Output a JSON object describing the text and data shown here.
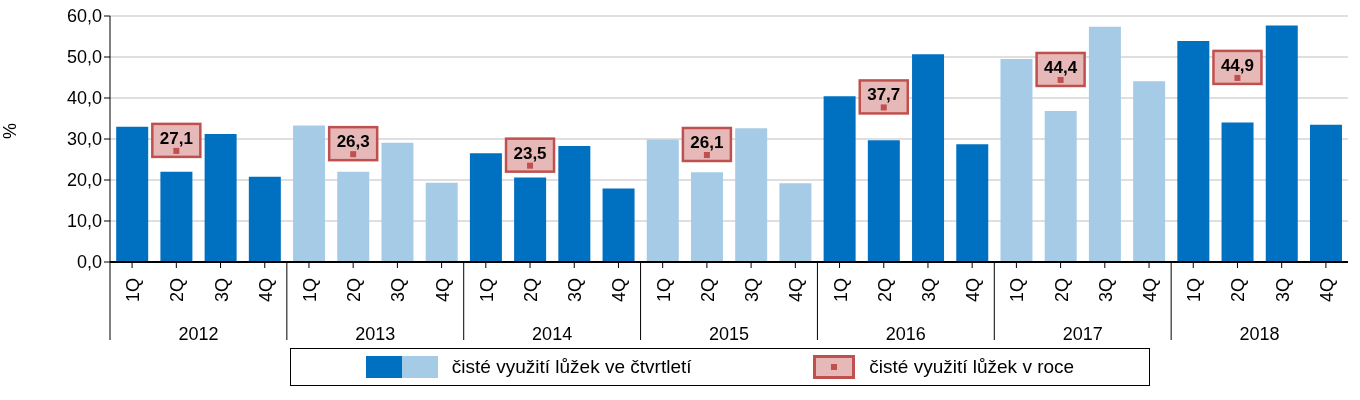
{
  "chart_data": {
    "type": "bar",
    "ylabel": "%",
    "categories": [
      "1Q",
      "2Q",
      "3Q",
      "4Q",
      "1Q",
      "2Q",
      "3Q",
      "4Q",
      "1Q",
      "2Q",
      "3Q",
      "4Q",
      "1Q",
      "2Q",
      "3Q",
      "4Q",
      "1Q",
      "2Q",
      "3Q",
      "4Q",
      "1Q",
      "2Q",
      "3Q",
      "4Q",
      "1Q",
      "2Q",
      "3Q",
      "4Q"
    ],
    "series": [
      {
        "name": "čisté využití lůžek ve čtvrtletí",
        "colors": [
          "#0070c0",
          "#0070c0",
          "#0070c0",
          "#0070c0",
          "#a6cbe7",
          "#a6cbe7",
          "#a6cbe7",
          "#a6cbe7",
          "#0070c0",
          "#0070c0",
          "#0070c0",
          "#0070c0",
          "#a6cbe7",
          "#a6cbe7",
          "#a6cbe7",
          "#a6cbe7",
          "#0070c0",
          "#0070c0",
          "#0070c0",
          "#0070c0",
          "#a6cbe7",
          "#a6cbe7",
          "#a6cbe7",
          "#a6cbe7",
          "#0070c0",
          "#0070c0",
          "#0070c0",
          "#0070c0"
        ],
        "values": [
          33.0,
          22.0,
          31.2,
          20.8,
          33.3,
          22.0,
          29.1,
          19.3,
          26.5,
          20.6,
          28.3,
          17.9,
          29.9,
          21.9,
          32.6,
          19.2,
          40.4,
          29.7,
          50.7,
          28.7,
          49.5,
          36.8,
          57.4,
          44.1,
          53.9,
          34.0,
          57.7,
          33.5
        ]
      },
      {
        "name": "čisté využití lůžek v roce",
        "type": "scatter",
        "marker": "square",
        "color": "#c0504d",
        "values": [
          null,
          27.1,
          null,
          null,
          null,
          26.3,
          null,
          null,
          null,
          23.5,
          null,
          null,
          null,
          26.1,
          null,
          null,
          null,
          37.7,
          null,
          null,
          null,
          44.4,
          null,
          null,
          null,
          44.9,
          null,
          null
        ],
        "value_labels": [
          null,
          "27,1",
          null,
          null,
          null,
          "26,3",
          null,
          null,
          null,
          "23,5",
          null,
          null,
          null,
          "26,1",
          null,
          null,
          null,
          "37,7",
          null,
          null,
          null,
          "44,4",
          null,
          null,
          null,
          "44,9",
          null,
          null
        ]
      }
    ],
    "annotations": [
      "2012",
      "2013",
      "2014",
      "2015",
      "2016",
      "2017",
      "2018"
    ],
    "ylim": [
      0,
      60
    ],
    "yticks": [
      {
        "value": 0,
        "label": "0,0"
      },
      {
        "value": 10,
        "label": "10,0"
      },
      {
        "value": 20,
        "label": "20,0"
      },
      {
        "value": 30,
        "label": "30,0"
      },
      {
        "value": 40,
        "label": "40,0"
      },
      {
        "value": 50,
        "label": "50,0"
      },
      {
        "value": 60,
        "label": "60,0"
      }
    ],
    "grid": "y",
    "legend": "bottom"
  }
}
